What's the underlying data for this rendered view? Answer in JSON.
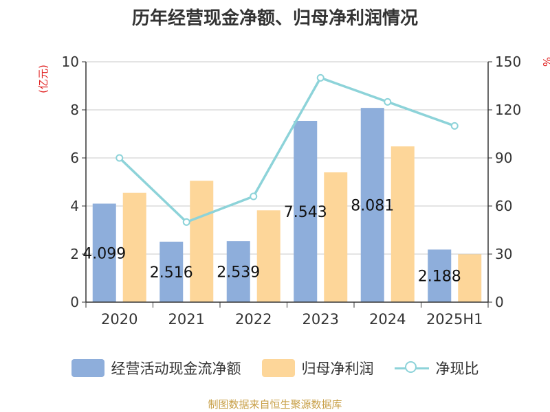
{
  "chart_data": {
    "type": "bar",
    "title": "历年经营现金净额、归母净利润情况",
    "categories": [
      "2020",
      "2021",
      "2022",
      "2023",
      "2024",
      "2025H1"
    ],
    "series": [
      {
        "name": "经营活动现金流净额",
        "kind": "bar",
        "axis": "left",
        "values": [
          4.099,
          2.516,
          2.539,
          7.543,
          8.081,
          2.188
        ],
        "labels": [
          "4.099",
          "2.516",
          "2.539",
          "7.543",
          "8.081",
          "2.188"
        ],
        "color": "#8eaedb"
      },
      {
        "name": "归母净利润",
        "kind": "bar",
        "axis": "left",
        "values": [
          4.55,
          5.05,
          3.82,
          5.4,
          6.48,
          1.99
        ],
        "color": "#fdd699"
      },
      {
        "name": "净现比",
        "kind": "line",
        "axis": "right",
        "values": [
          90,
          50,
          66,
          140,
          125,
          110
        ],
        "color": "#8dd3d9"
      }
    ],
    "ylabel_left": "(亿元)",
    "ylabel_right": "%",
    "ylim_left": [
      0,
      10
    ],
    "ylim_right": [
      0,
      150
    ],
    "yticks_left": [
      "0",
      "2",
      "4",
      "6",
      "8",
      "10"
    ],
    "yticks_right": [
      "0",
      "30",
      "60",
      "90",
      "120",
      "150"
    ],
    "grid": true,
    "legend_position": "bottom",
    "source_note": "制图数据来自恒生聚源数据库"
  }
}
